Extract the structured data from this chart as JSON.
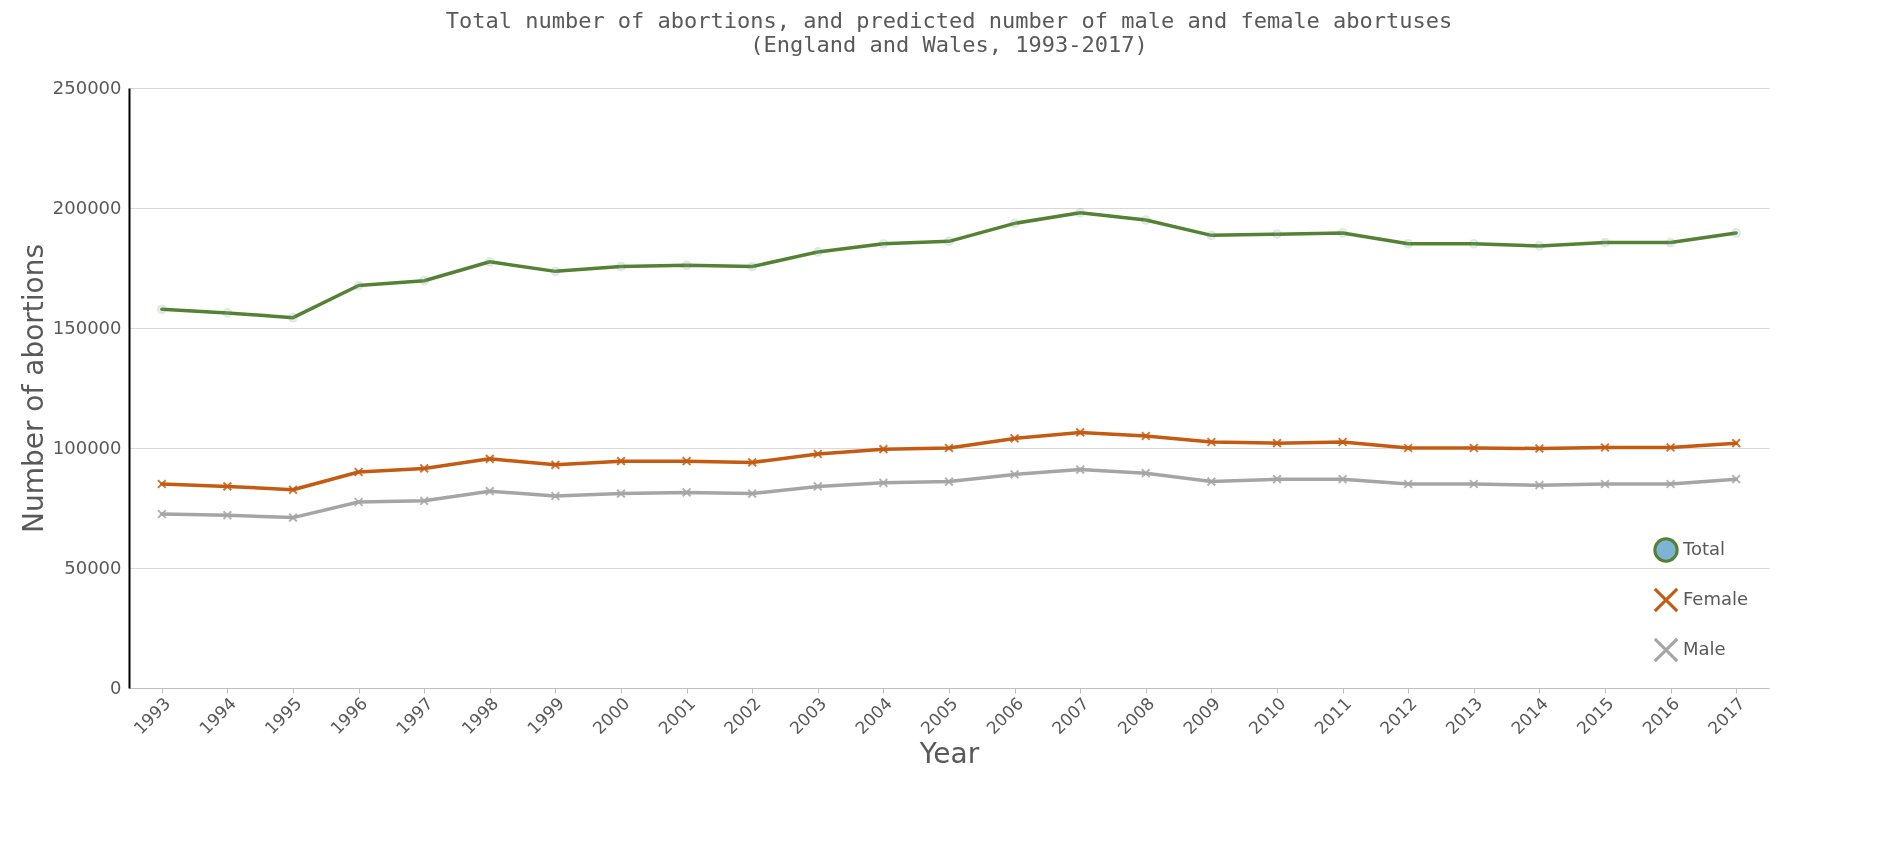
{
  "chart_data": {
    "type": "line",
    "title": "Total number of abortions, and predicted number of male and female abortuses",
    "subtitle": "(England and Wales, 1993-2017)",
    "xlabel": "Year",
    "ylabel": "Number of abortions",
    "categories": [
      "1993",
      "1994",
      "1995",
      "1996",
      "1997",
      "1998",
      "1999",
      "2000",
      "2001",
      "2002",
      "2003",
      "2004",
      "2005",
      "2006",
      "2007",
      "2008",
      "2009",
      "2010",
      "2011",
      "2012",
      "2013",
      "2014",
      "2015",
      "2016",
      "2017"
    ],
    "series": [
      {
        "name": "Total",
        "color": "#548235",
        "marker": "circle",
        "values": [
          157800,
          156300,
          154300,
          167700,
          169700,
          177600,
          173600,
          175600,
          176100,
          175600,
          181700,
          185100,
          186100,
          193600,
          198000,
          195000,
          188600,
          189100,
          189600,
          185100,
          185100,
          184200,
          185600,
          185600,
          189600
        ]
      },
      {
        "name": "Female",
        "color": "#c55a11",
        "marker": "cross",
        "values": [
          85000,
          84000,
          82600,
          90000,
          91500,
          95500,
          93000,
          94500,
          94500,
          94000,
          97500,
          99500,
          100000,
          104000,
          106500,
          105000,
          102500,
          102000,
          102500,
          100000,
          100000,
          99800,
          100200,
          100200,
          102000
        ]
      },
      {
        "name": "Male",
        "color": "#a5a5a5",
        "marker": "cross",
        "values": [
          72500,
          72000,
          71000,
          77500,
          78000,
          82000,
          80000,
          81000,
          81500,
          81000,
          84000,
          85500,
          86000,
          89000,
          91000,
          89500,
          86000,
          87000,
          87000,
          85000,
          85000,
          84500,
          85000,
          85000,
          87000
        ]
      }
    ],
    "ylim": [
      0,
      250000
    ],
    "yticks": [
      0,
      50000,
      100000,
      150000,
      200000,
      250000
    ],
    "grid": "y",
    "legend": "bottom right",
    "line_style": "solid"
  }
}
